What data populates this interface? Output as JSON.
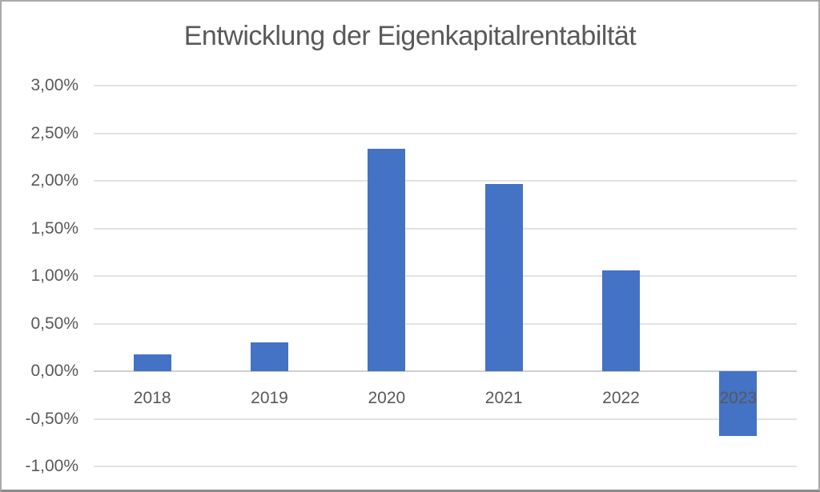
{
  "chart_data": {
    "type": "bar",
    "title": "Entwicklung der Eigenkapitalrentabiltät",
    "categories": [
      "2018",
      "2019",
      "2020",
      "2021",
      "2022",
      "2023"
    ],
    "values": [
      0.18,
      0.3,
      2.34,
      1.97,
      1.06,
      -0.68
    ],
    "ylim": [
      -1.0,
      3.0
    ],
    "yticks": [
      {
        "label": "3,00%",
        "value": 3.0
      },
      {
        "label": "2,50%",
        "value": 2.5
      },
      {
        "label": "2,00%",
        "value": 2.0
      },
      {
        "label": "1,50%",
        "value": 1.5
      },
      {
        "label": "1,00%",
        "value": 1.0
      },
      {
        "label": "0,50%",
        "value": 0.5
      },
      {
        "label": "0,00%",
        "value": 0.0
      },
      {
        "label": "-0,50%",
        "value": -0.5
      },
      {
        "label": "-1,00%",
        "value": -1.0
      }
    ],
    "xlabel": "",
    "ylabel": "",
    "legend": false,
    "grid": true,
    "bar_color": "#4472C4",
    "text_color": "#595959",
    "gridline_color": "#E3E3E3",
    "axis_line_color": "#CFCFCF"
  }
}
